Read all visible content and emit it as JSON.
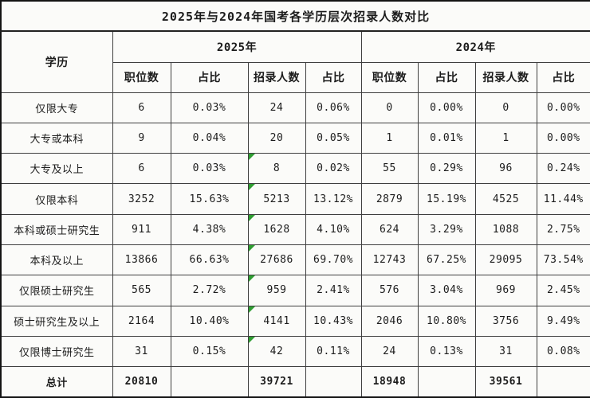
{
  "title": "2025年与2024年国考各学历层次招录人数对比",
  "colors": {
    "marker_green": "#2f9e32",
    "border_inner": "#3f3f3f",
    "border_outer": "#141414",
    "background": "#fbfbf9",
    "text": "#1c1c1c"
  },
  "chart_data": {
    "type": "table",
    "title": "2025年与2024年国考各学历层次招录人数对比",
    "row_header": "学历",
    "column_groups": [
      {
        "label": "2025年",
        "span": 4
      },
      {
        "label": "2024年",
        "span": 4
      }
    ],
    "columns": [
      "职位数",
      "占比",
      "招录人数",
      "占比",
      "职位数",
      "占比",
      "招录人数",
      "占比"
    ],
    "rows": [
      {
        "label": "仅限大专",
        "cells": [
          "6",
          "0.03%",
          "24",
          "0.06%",
          "0",
          "0.00%",
          "0",
          "0.00%"
        ],
        "green_corner_marker": false,
        "is_total": false
      },
      {
        "label": "大专或本科",
        "cells": [
          "9",
          "0.04%",
          "20",
          "0.05%",
          "1",
          "0.01%",
          "1",
          "0.00%"
        ],
        "green_corner_marker": false,
        "is_total": false
      },
      {
        "label": "大专及以上",
        "cells": [
          "6",
          "0.03%",
          "8",
          "0.02%",
          "55",
          "0.29%",
          "96",
          "0.24%"
        ],
        "green_corner_marker": true,
        "is_total": false
      },
      {
        "label": "仅限本科",
        "cells": [
          "3252",
          "15.63%",
          "5213",
          "13.12%",
          "2879",
          "15.19%",
          "4525",
          "11.44%"
        ],
        "green_corner_marker": true,
        "is_total": false
      },
      {
        "label": "本科或硕士研究生",
        "cells": [
          "911",
          "4.38%",
          "1628",
          "4.10%",
          "624",
          "3.29%",
          "1088",
          "2.75%"
        ],
        "green_corner_marker": true,
        "is_total": false
      },
      {
        "label": "本科及以上",
        "cells": [
          "13866",
          "66.63%",
          "27686",
          "69.70%",
          "12743",
          "67.25%",
          "29095",
          "73.54%"
        ],
        "green_corner_marker": true,
        "is_total": false
      },
      {
        "label": "仅限硕士研究生",
        "cells": [
          "565",
          "2.72%",
          "959",
          "2.41%",
          "576",
          "3.04%",
          "969",
          "2.45%"
        ],
        "green_corner_marker": true,
        "is_total": false
      },
      {
        "label": "硕士研究生及以上",
        "cells": [
          "2164",
          "10.40%",
          "4141",
          "10.43%",
          "2046",
          "10.80%",
          "3756",
          "9.49%"
        ],
        "green_corner_marker": true,
        "is_total": false
      },
      {
        "label": "仅限博士研究生",
        "cells": [
          "31",
          "0.15%",
          "42",
          "0.11%",
          "24",
          "0.13%",
          "31",
          "0.08%"
        ],
        "green_corner_marker": true,
        "is_total": false
      },
      {
        "label": "总计",
        "cells": [
          "20810",
          "",
          "39721",
          "",
          "18948",
          "",
          "39561",
          ""
        ],
        "green_corner_marker": false,
        "is_total": true
      }
    ],
    "notes": "green corner marker appears on the 2025 招录人数 column (cell index 2) for marked rows"
  }
}
